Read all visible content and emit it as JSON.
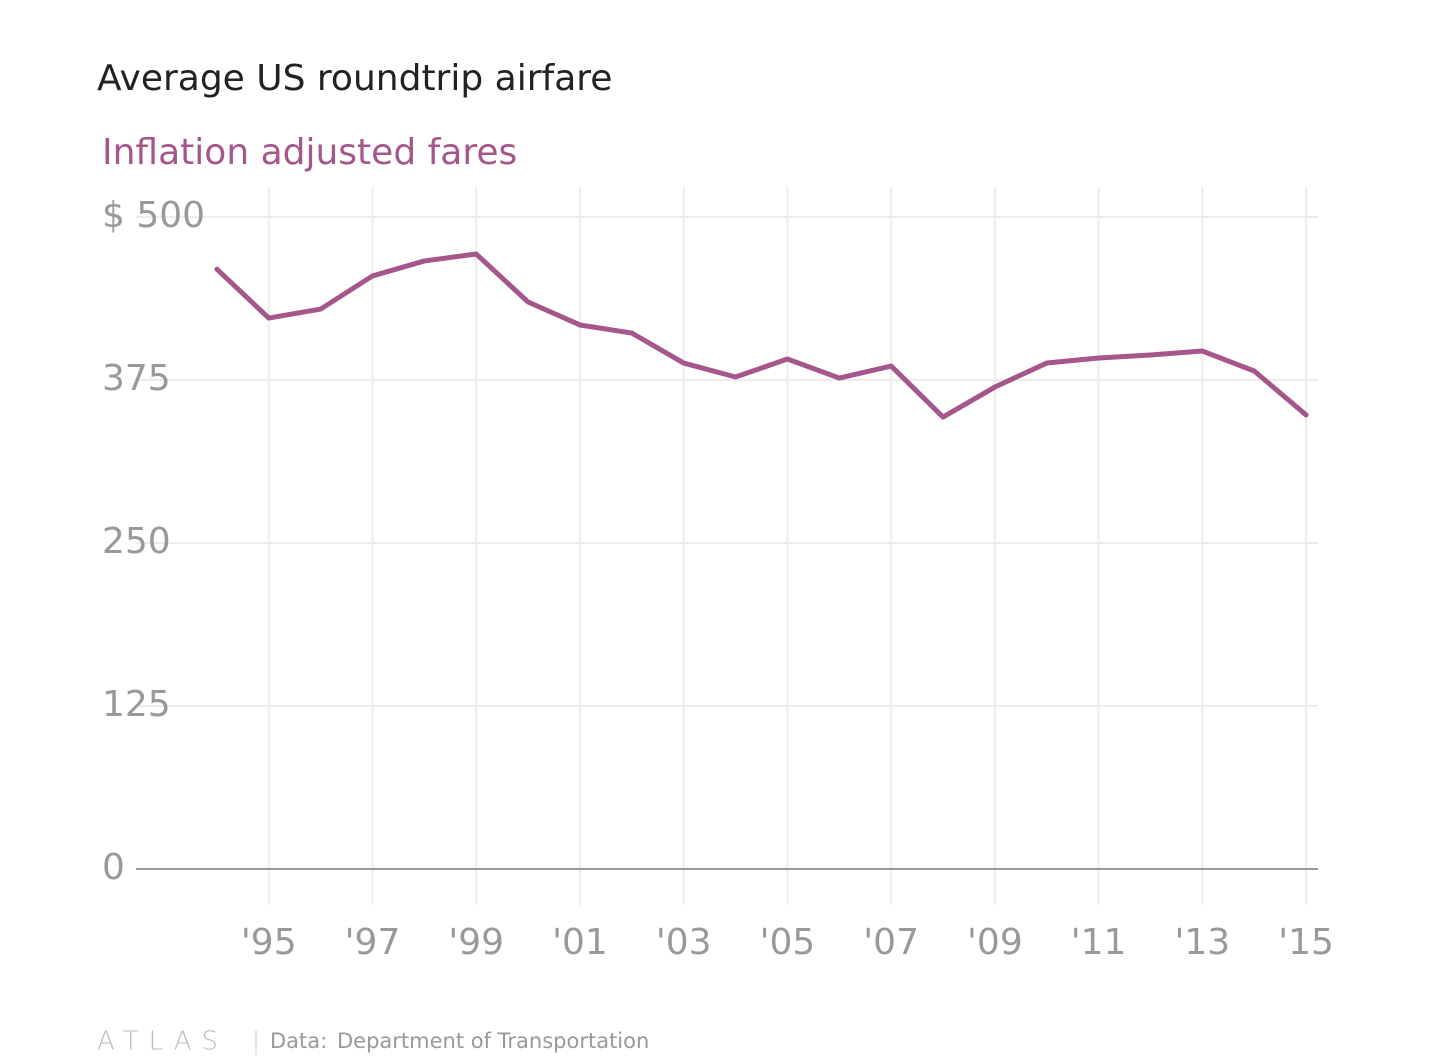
{
  "chart_data": {
    "type": "line",
    "title": "Average US roundtrip airfare",
    "subtitle": "Inflation adjusted fares",
    "x": [
      1994,
      1995,
      1996,
      1997,
      1998,
      1999,
      2000,
      2001,
      2002,
      2003,
      2004,
      2005,
      2006,
      2007,
      2008,
      2009,
      2010,
      2011,
      2012,
      2013,
      2014,
      2015
    ],
    "series": [
      {
        "name": "Inflation adjusted fares",
        "color": "#a5568a",
        "values": [
          460,
          422.5,
          429.4,
          454.8,
          466.3,
          471.6,
          434.8,
          417.2,
          411,
          388,
          377.3,
          391.1,
          376.5,
          385.7,
          346.6,
          369.6,
          388,
          391.9,
          394.2,
          397.2,
          381.9,
          348.2
        ]
      }
    ],
    "xlim": [
      1992.44,
      2015.23
    ],
    "xticks": [
      {
        "value": 1995,
        "label": "'95"
      },
      {
        "value": 1997,
        "label": "'97"
      },
      {
        "value": 1999,
        "label": "'99"
      },
      {
        "value": 2001,
        "label": "'01"
      },
      {
        "value": 2003,
        "label": "'03"
      },
      {
        "value": 2005,
        "label": "'05"
      },
      {
        "value": 2007,
        "label": "'07"
      },
      {
        "value": 2009,
        "label": "'09"
      },
      {
        "value": 2011,
        "label": "'11"
      },
      {
        "value": 2013,
        "label": "'13"
      },
      {
        "value": 2015,
        "label": "'15"
      }
    ],
    "ylim": [
      0,
      500
    ],
    "yticks": [
      0,
      125,
      250,
      375,
      {
        "value": 500,
        "label": "$ 500"
      }
    ],
    "grid": true
  },
  "footer": {
    "brand": "ATLAS",
    "source_label": "Data:",
    "source": "Department of Transportation"
  }
}
